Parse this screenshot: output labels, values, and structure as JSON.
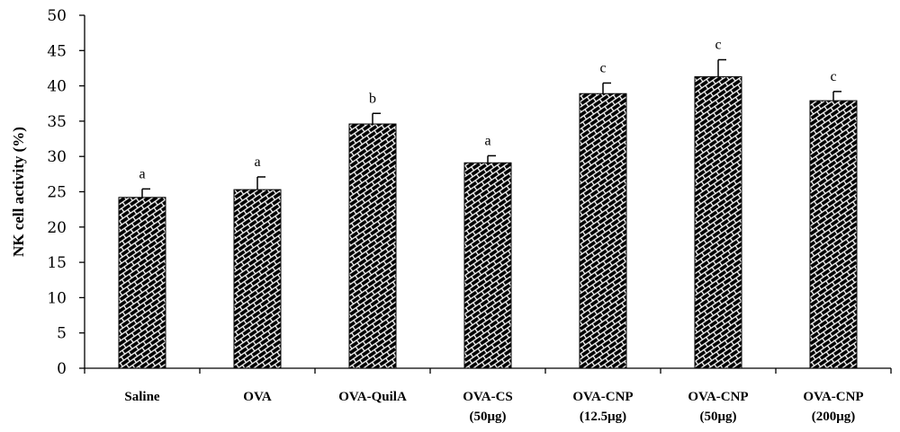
{
  "chart_data": {
    "type": "bar",
    "title": "",
    "xlabel": "",
    "ylabel": "NK cell activity (%)",
    "ylim": [
      0,
      50
    ],
    "yticks": [
      0,
      5,
      10,
      15,
      20,
      25,
      30,
      35,
      40,
      45,
      50
    ],
    "ytick_labels": [
      "0",
      "5",
      "10",
      "15",
      "20",
      "25",
      "30",
      "35",
      "40",
      "45",
      "50"
    ],
    "grid": false,
    "categories": [
      [
        "Saline"
      ],
      [
        "OVA"
      ],
      [
        "OVA-QuilA"
      ],
      [
        "OVA-CS",
        "(50μg)"
      ],
      [
        "OVA-CNP",
        "(12.5μg)"
      ],
      [
        "OVA-CNP",
        "(50μg)"
      ],
      [
        "OVA-CNP",
        "(200μg)"
      ]
    ],
    "values": [
      24.2,
      25.3,
      34.6,
      29.1,
      38.9,
      41.3,
      37.9
    ],
    "errors": [
      1.2,
      1.8,
      1.5,
      1.0,
      1.5,
      2.4,
      1.3
    ],
    "significance": [
      "a",
      "a",
      "b",
      "a",
      "c",
      "c",
      "c"
    ],
    "bar_color": "#000000",
    "bar_pattern_color": "#ffffff"
  }
}
